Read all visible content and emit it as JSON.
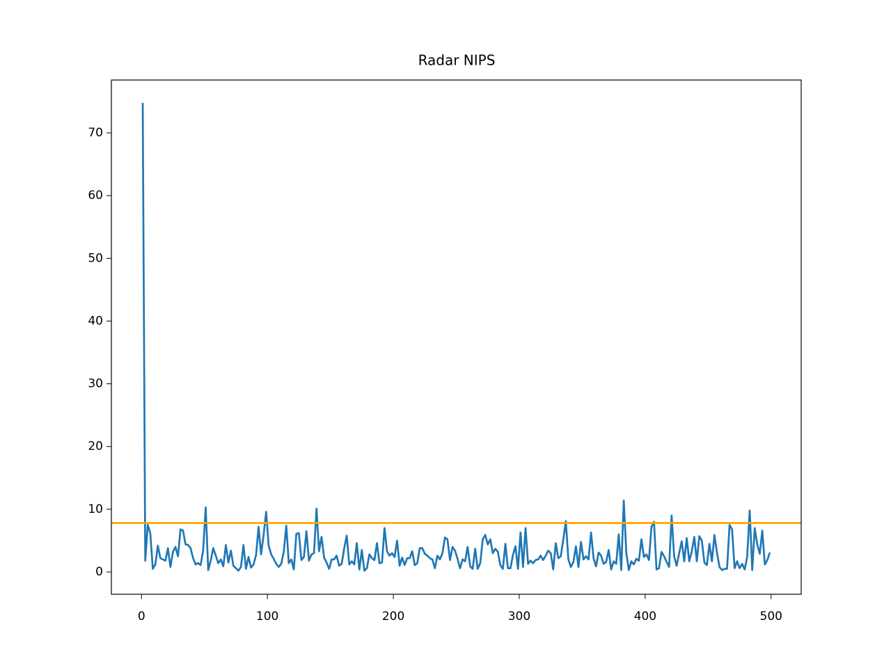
{
  "chart_data": {
    "type": "line",
    "title": "Radar NIPS",
    "x": [
      1,
      3,
      5,
      7,
      9,
      11,
      13,
      15,
      17,
      19,
      21,
      23,
      25,
      27,
      29,
      31,
      33,
      35,
      37,
      39,
      41,
      43,
      45,
      47,
      49,
      51,
      53,
      55,
      57,
      59,
      61,
      63,
      65,
      67,
      69,
      71,
      73,
      75,
      77,
      79,
      81,
      83,
      85,
      87,
      89,
      91,
      93,
      95,
      97,
      99,
      101,
      103,
      105,
      107,
      109,
      111,
      113,
      115,
      117,
      119,
      121,
      123,
      125,
      127,
      129,
      131,
      133,
      135,
      137,
      139,
      141,
      143,
      145,
      147,
      149,
      151,
      153,
      155,
      157,
      159,
      161,
      163,
      165,
      167,
      169,
      171,
      173,
      175,
      177,
      179,
      181,
      183,
      185,
      187,
      189,
      191,
      193,
      195,
      197,
      199,
      201,
      203,
      205,
      207,
      209,
      211,
      213,
      215,
      217,
      219,
      221,
      223,
      225,
      227,
      229,
      231,
      233,
      235,
      237,
      239,
      241,
      243,
      245,
      247,
      249,
      251,
      253,
      255,
      257,
      259,
      261,
      263,
      265,
      267,
      269,
      271,
      273,
      275,
      277,
      279,
      281,
      283,
      285,
      287,
      289,
      291,
      293,
      295,
      297,
      299,
      301,
      303,
      305,
      307,
      309,
      311,
      313,
      315,
      317,
      319,
      321,
      323,
      325,
      327,
      329,
      331,
      333,
      335,
      337,
      339,
      341,
      343,
      345,
      347,
      349,
      351,
      353,
      355,
      357,
      359,
      361,
      363,
      365,
      367,
      369,
      371,
      373,
      375,
      377,
      379,
      381,
      383,
      385,
      387,
      389,
      391,
      393,
      395,
      397,
      399,
      401,
      403,
      405,
      407,
      409,
      411,
      413,
      415,
      417,
      419,
      421,
      423,
      425,
      427,
      429,
      431,
      433,
      435,
      437,
      439,
      441,
      443,
      445,
      447,
      449,
      451,
      453,
      455,
      457,
      459,
      461,
      463,
      465,
      467,
      469,
      471,
      473,
      475,
      477,
      479,
      481,
      483,
      485,
      487,
      489,
      491,
      493,
      495,
      497,
      499
    ],
    "series": [
      {
        "color": "#1f77b4",
        "values": [
          74.8,
          1.8,
          7.5,
          6.2,
          0.5,
          1.2,
          4.2,
          2.2,
          2.0,
          1.8,
          3.8,
          0.8,
          3.2,
          4.0,
          2.5,
          6.8,
          6.6,
          4.4,
          4.3,
          3.8,
          2.2,
          1.2,
          1.4,
          1.1,
          3.5,
          10.3,
          0.3,
          1.8,
          3.8,
          2.6,
          1.4,
          2.0,
          0.9,
          4.3,
          1.5,
          3.4,
          1.0,
          0.6,
          0.2,
          0.8,
          4.3,
          0.5,
          2.4,
          0.7,
          1.2,
          2.7,
          7.2,
          2.8,
          5.9,
          9.6,
          4.2,
          2.8,
          2.1,
          1.3,
          0.8,
          1.3,
          3.2,
          7.4,
          1.4,
          2.0,
          0.4,
          6.1,
          6.2,
          1.9,
          2.4,
          6.5,
          1.8,
          2.8,
          3.0,
          10.1,
          3.3,
          5.6,
          2.3,
          1.5,
          0.5,
          2.0,
          2.0,
          2.6,
          1.0,
          1.3,
          3.8,
          5.8,
          1.2,
          1.7,
          1.2,
          4.6,
          0.4,
          3.5,
          0.2,
          0.6,
          2.8,
          2.2,
          1.9,
          4.6,
          1.4,
          1.5,
          7.0,
          3.3,
          2.6,
          3.0,
          2.4,
          5.0,
          1.0,
          2.3,
          1.1,
          2.2,
          2.2,
          3.3,
          1.1,
          1.4,
          3.8,
          3.8,
          2.9,
          2.6,
          2.2,
          2.0,
          0.6,
          2.6,
          2.0,
          3.0,
          5.5,
          5.2,
          1.9,
          4.0,
          3.4,
          2.1,
          0.6,
          2.0,
          1.7,
          4.0,
          0.9,
          0.5,
          3.7,
          0.5,
          1.4,
          5.2,
          5.9,
          4.4,
          5.2,
          3.0,
          3.7,
          3.2,
          1.1,
          0.5,
          4.5,
          0.6,
          0.6,
          2.7,
          4.1,
          0.5,
          6.3,
          0.8,
          7.0,
          1.3,
          1.8,
          1.4,
          1.9,
          2.0,
          2.6,
          1.9,
          2.6,
          3.4,
          3.0,
          0.4,
          4.6,
          2.2,
          2.5,
          5.2,
          8.1,
          2.0,
          0.8,
          1.6,
          4.1,
          0.8,
          4.8,
          2.0,
          2.5,
          2.0,
          6.3,
          2.2,
          0.9,
          3.1,
          2.6,
          1.3,
          1.6,
          3.5,
          0.4,
          1.7,
          1.3,
          6.0,
          0.3,
          11.4,
          3.1,
          0.3,
          1.7,
          1.2,
          2.1,
          1.8,
          5.2,
          2.4,
          2.8,
          1.9,
          7.2,
          8.0,
          0.4,
          0.6,
          3.2,
          2.5,
          1.6,
          0.8,
          9.0,
          2.5,
          1.0,
          3.0,
          4.9,
          1.7,
          5.4,
          1.7,
          3.3,
          5.6,
          1.7,
          5.7,
          5.0,
          1.5,
          1.1,
          4.5,
          1.7,
          5.9,
          3.1,
          0.8,
          0.3,
          0.5,
          0.5,
          7.5,
          6.8,
          0.6,
          1.7,
          0.6,
          1.3,
          0.4,
          2.4,
          9.8,
          0.3,
          7.0,
          4.4,
          2.9,
          6.6,
          1.2,
          1.9,
          3.1
        ]
      }
    ],
    "threshold": {
      "value": 7.81,
      "color": "#ffa500"
    },
    "xlim": [
      -23.9,
      523.9
    ],
    "ylim": [
      -3.55,
      78.43
    ],
    "xticks": [
      0,
      100,
      200,
      300,
      400,
      500
    ],
    "yticks": [
      0,
      10,
      20,
      30,
      40,
      50,
      60,
      70
    ]
  }
}
